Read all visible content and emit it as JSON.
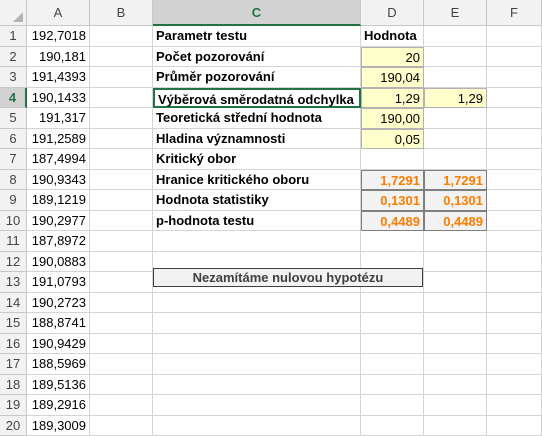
{
  "columns": [
    "A",
    "B",
    "C",
    "D",
    "E",
    "F"
  ],
  "rows": [
    "1",
    "2",
    "3",
    "4",
    "5",
    "6",
    "7",
    "8",
    "9",
    "10",
    "11",
    "12",
    "13",
    "14",
    "15",
    "16",
    "17",
    "18",
    "19",
    "20"
  ],
  "column_a": [
    "192,7018",
    "190,181",
    "191,4393",
    "190,1433",
    "191,317",
    "191,2589",
    "187,4994",
    "190,9343",
    "189,1219",
    "190,2977",
    "187,8972",
    "190,0883",
    "191,0793",
    "190,2723",
    "188,8741",
    "190,9429",
    "188,5969",
    "189,5136",
    "189,2916",
    "189,3009"
  ],
  "params": {
    "header_label": "Parametr testu",
    "header_value": "Hodnota",
    "items": [
      {
        "label": "Počet pozorování",
        "d": "20",
        "e": ""
      },
      {
        "label": "Průměr pozorování",
        "d": "190,04",
        "e": ""
      },
      {
        "label": "Výběrová směrodatná odchylka",
        "d": "1,29",
        "e": "1,29"
      },
      {
        "label": "Teoretická střední hodnota",
        "d": "190,00",
        "e": ""
      },
      {
        "label": "Hladina významnosti",
        "d": "0,05",
        "e": ""
      },
      {
        "label": "Kritický obor",
        "d": "",
        "e": ""
      },
      {
        "label": "Hranice kritického oboru",
        "d": "1,7291",
        "e": "1,7291"
      },
      {
        "label": "Hodnota statistiky",
        "d": "0,1301",
        "e": "0,1301"
      },
      {
        "label": "p-hodnota testu",
        "d": "0,4489",
        "e": "0,4489"
      }
    ]
  },
  "conclusion": "Nezamítáme nulovou hypotézu",
  "colors": {
    "accent": "#217346",
    "input_fill": "#ffffcc",
    "output_text": "#fa7d00"
  }
}
